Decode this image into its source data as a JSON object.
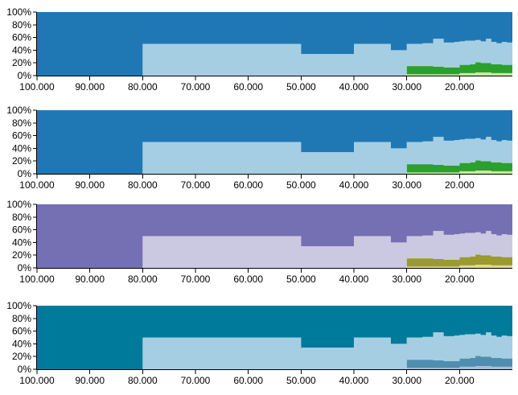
{
  "chart_data": [
    {
      "type": "area",
      "subtype": "stacked-step-percent",
      "x_axis": {
        "domain": [
          100000,
          10000
        ],
        "reversed": true,
        "ticks": [
          100000,
          90000,
          80000,
          70000,
          60000,
          50000,
          40000,
          30000,
          20000
        ],
        "tick_labels": [
          "100.000",
          "90.000",
          "80.000",
          "70.000",
          "60.000",
          "50.000",
          "40.000",
          "30.000",
          "20.000"
        ]
      },
      "y_axis": {
        "domain": [
          0,
          100
        ],
        "ticks": [
          0,
          20,
          40,
          60,
          80,
          100
        ],
        "tick_labels": [
          "0%",
          "20%",
          "40%",
          "60%",
          "80%",
          "100%"
        ]
      },
      "x": [
        100000,
        80000,
        50000,
        40000,
        33000,
        30000,
        27000,
        25000,
        23000,
        21000,
        20000,
        19000,
        18000,
        17000,
        16000,
        15000,
        14000,
        13000,
        12000,
        11000
      ],
      "series": [
        {
          "values": [
            0,
            0,
            0,
            0,
            0,
            2,
            2,
            2,
            2,
            2,
            4,
            4,
            4,
            5,
            5,
            5,
            4,
            4,
            4,
            4
          ],
          "color": "#c7e9a0"
        },
        {
          "values": [
            0,
            0,
            0,
            0,
            0,
            13,
            13,
            12,
            11,
            11,
            13,
            13,
            14,
            16,
            15,
            15,
            14,
            14,
            13,
            13
          ],
          "color": "#2ca02c"
        },
        {
          "values": [
            0,
            50,
            34,
            50,
            40,
            35,
            36,
            44,
            39,
            40,
            37,
            38,
            37,
            35,
            34,
            38,
            35,
            33,
            36,
            35
          ],
          "color": "#a6cee3"
        },
        {
          "values": [
            100,
            50,
            66,
            50,
            60,
            50,
            49,
            42,
            48,
            47,
            46,
            45,
            45,
            44,
            46,
            42,
            47,
            49,
            47,
            48
          ],
          "color": "#1f78b4"
        }
      ]
    },
    {
      "type": "area",
      "subtype": "stacked-step-percent",
      "x_axis": {
        "domain": [
          100000,
          10000
        ],
        "reversed": true,
        "ticks": [
          100000,
          90000,
          80000,
          70000,
          60000,
          50000,
          40000,
          30000,
          20000
        ],
        "tick_labels": [
          "100.000",
          "90.000",
          "80.000",
          "70.000",
          "60.000",
          "50.000",
          "40.000",
          "30.000",
          "20.000"
        ]
      },
      "y_axis": {
        "domain": [
          0,
          100
        ],
        "ticks": [
          0,
          20,
          40,
          60,
          80,
          100
        ],
        "tick_labels": [
          "0%",
          "20%",
          "40%",
          "60%",
          "80%",
          "100%"
        ]
      },
      "x": [
        100000,
        80000,
        50000,
        40000,
        33000,
        30000,
        27000,
        25000,
        23000,
        21000,
        20000,
        19000,
        18000,
        17000,
        16000,
        15000,
        14000,
        13000,
        12000,
        11000
      ],
      "series": [
        {
          "values": [
            0,
            0,
            0,
            0,
            0,
            2,
            2,
            2,
            2,
            2,
            4,
            4,
            4,
            5,
            5,
            5,
            4,
            4,
            4,
            4
          ],
          "color": "#c7e9a0"
        },
        {
          "values": [
            0,
            0,
            0,
            0,
            0,
            13,
            13,
            12,
            11,
            11,
            13,
            13,
            14,
            16,
            15,
            15,
            14,
            14,
            13,
            13
          ],
          "color": "#2ca02c"
        },
        {
          "values": [
            0,
            50,
            34,
            50,
            40,
            35,
            36,
            44,
            39,
            40,
            37,
            38,
            37,
            35,
            34,
            38,
            35,
            33,
            36,
            35
          ],
          "color": "#a6cee3"
        },
        {
          "values": [
            100,
            50,
            66,
            50,
            60,
            50,
            49,
            42,
            48,
            47,
            46,
            45,
            45,
            44,
            46,
            42,
            47,
            49,
            47,
            48
          ],
          "color": "#1f78b4"
        }
      ]
    },
    {
      "type": "area",
      "subtype": "stacked-step-percent",
      "x_axis": {
        "domain": [
          100000,
          10000
        ],
        "reversed": true,
        "ticks": [
          100000,
          90000,
          80000,
          70000,
          60000,
          50000,
          40000,
          30000,
          20000
        ],
        "tick_labels": [
          "100.000",
          "90.000",
          "80.000",
          "70.000",
          "60.000",
          "50.000",
          "40.000",
          "30.000",
          "20.000"
        ]
      },
      "y_axis": {
        "domain": [
          0,
          100
        ],
        "ticks": [
          0,
          20,
          40,
          60,
          80,
          100
        ],
        "tick_labels": [
          "0%",
          "20%",
          "40%",
          "60%",
          "80%",
          "100%"
        ]
      },
      "x": [
        100000,
        80000,
        50000,
        40000,
        33000,
        30000,
        27000,
        25000,
        23000,
        21000,
        20000,
        19000,
        18000,
        17000,
        16000,
        15000,
        14000,
        13000,
        12000,
        11000
      ],
      "series": [
        {
          "values": [
            0,
            0,
            0,
            0,
            0,
            2,
            2,
            2,
            2,
            2,
            4,
            4,
            4,
            5,
            5,
            5,
            4,
            4,
            4,
            4
          ],
          "color": "#dbdb8d"
        },
        {
          "values": [
            0,
            0,
            0,
            0,
            0,
            13,
            13,
            12,
            11,
            11,
            13,
            13,
            14,
            16,
            15,
            15,
            14,
            14,
            13,
            13
          ],
          "color": "#9a9a2e"
        },
        {
          "values": [
            0,
            50,
            34,
            50,
            40,
            35,
            36,
            44,
            39,
            40,
            37,
            38,
            37,
            35,
            34,
            38,
            35,
            33,
            36,
            35
          ],
          "color": "#cbc9e2"
        },
        {
          "values": [
            100,
            50,
            66,
            50,
            60,
            50,
            49,
            42,
            48,
            47,
            46,
            45,
            45,
            44,
            46,
            42,
            47,
            49,
            47,
            48
          ],
          "color": "#7570b3"
        }
      ]
    },
    {
      "type": "area",
      "subtype": "stacked-step-percent",
      "x_axis": {
        "domain": [
          100000,
          10000
        ],
        "reversed": true,
        "ticks": [
          100000,
          90000,
          80000,
          70000,
          60000,
          50000,
          40000,
          30000,
          20000
        ],
        "tick_labels": [
          "100.000",
          "90.000",
          "80.000",
          "70.000",
          "60.000",
          "50.000",
          "40.000",
          "30.000",
          "20.000"
        ]
      },
      "y_axis": {
        "domain": [
          0,
          100
        ],
        "ticks": [
          0,
          20,
          40,
          60,
          80,
          100
        ],
        "tick_labels": [
          "0%",
          "20%",
          "40%",
          "60%",
          "80%",
          "100%"
        ]
      },
      "x": [
        100000,
        80000,
        50000,
        40000,
        33000,
        30000,
        27000,
        25000,
        23000,
        21000,
        20000,
        19000,
        18000,
        17000,
        16000,
        15000,
        14000,
        13000,
        12000,
        11000
      ],
      "series": [
        {
          "values": [
            0,
            0,
            0,
            0,
            0,
            2,
            2,
            2,
            2,
            2,
            4,
            4,
            4,
            5,
            5,
            5,
            4,
            4,
            4,
            4
          ],
          "color": "#a6bddb"
        },
        {
          "values": [
            0,
            0,
            0,
            0,
            0,
            13,
            13,
            12,
            11,
            11,
            13,
            13,
            14,
            16,
            15,
            15,
            14,
            14,
            13,
            13
          ],
          "color": "#4f8eb0"
        },
        {
          "values": [
            0,
            50,
            34,
            50,
            40,
            35,
            36,
            44,
            39,
            40,
            37,
            38,
            37,
            35,
            34,
            38,
            35,
            33,
            36,
            35
          ],
          "color": "#a6cee3"
        },
        {
          "values": [
            100,
            50,
            66,
            50,
            60,
            50,
            49,
            42,
            48,
            47,
            46,
            45,
            45,
            44,
            46,
            42,
            47,
            49,
            47,
            48
          ],
          "color": "#007a9a"
        }
      ]
    }
  ]
}
